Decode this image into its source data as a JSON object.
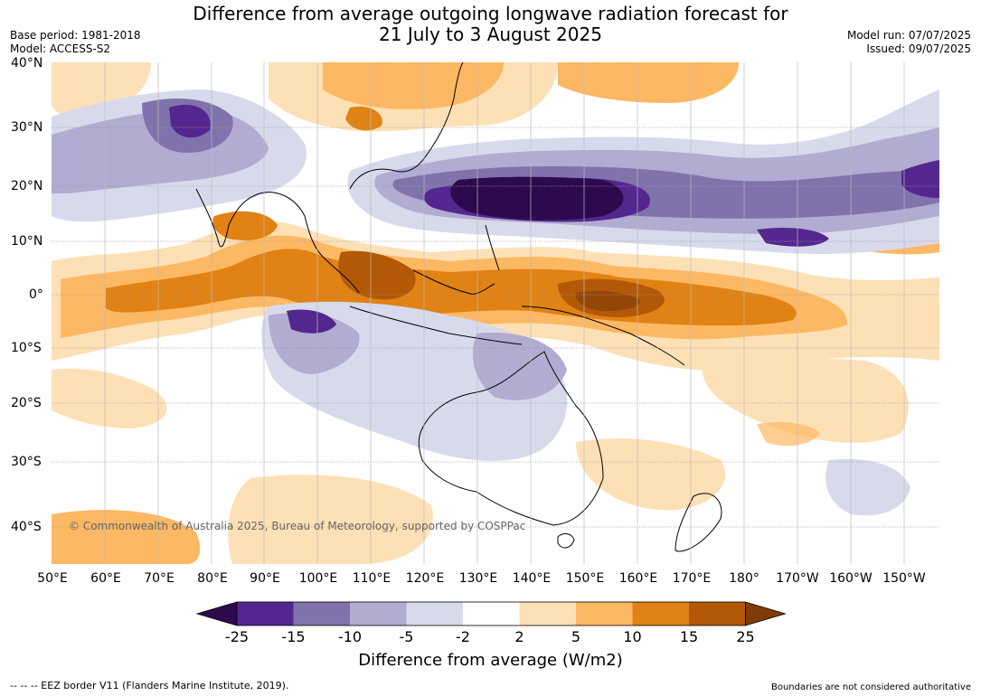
{
  "title": {
    "line1": "Difference from average outgoing longwave radiation forecast for",
    "line2": "21 July to 3 August 2025"
  },
  "meta": {
    "base_period": "Base period: 1981-2018",
    "model": "Model: ACCESS-S2",
    "model_run": "Model run: 07/07/2025",
    "issued": "Issued: 09/07/2025"
  },
  "lat_labels": [
    "40°N",
    "30°N",
    "20°N",
    "10°N",
    "0°",
    "10°S",
    "20°S",
    "30°S",
    "40°S"
  ],
  "lon_labels": [
    "50°E",
    "60°E",
    "70°E",
    "80°E",
    "90°E",
    "100°E",
    "110°E",
    "120°E",
    "130°E",
    "140°E",
    "150°E",
    "160°E",
    "170°E",
    "180°",
    "170°W",
    "160°W",
    "150°W"
  ],
  "copyright": "© Commonwealth of Australia 2025, Bureau of Meteorology, supported by COSPPac",
  "colorbar": {
    "ticks": [
      "-25",
      "-15",
      "-10",
      "-5",
      "-2",
      "2",
      "5",
      "10",
      "15",
      "25"
    ],
    "colors": [
      "#2d0a4e",
      "#54278f",
      "#8073ac",
      "#b2abd2",
      "#d8daeb",
      "#ffffff",
      "#fee0b6",
      "#fdb863",
      "#e08214",
      "#b35806",
      "#7f3b08"
    ],
    "label": "Difference from average (W/m2)"
  },
  "footer": {
    "left": "--  --  -- EEZ border V11 (Flanders Marine Institute, 2019).",
    "right": "Boundaries are not considered authoritative"
  }
}
